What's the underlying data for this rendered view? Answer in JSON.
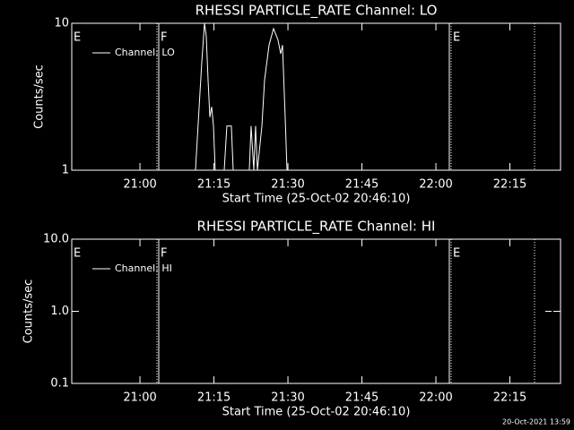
{
  "chart_data": [
    {
      "type": "line",
      "title": "RHESSI PARTICLE_RATE Channel: LO",
      "xlabel": "Start Time (25-Oct-02 20:46:10)",
      "ylabel": "Counts/sec",
      "log_y": true,
      "legend": "upper left",
      "xlim": [
        1246.17,
        1345.27
      ],
      "xticks": [
        {
          "value": 1260,
          "label": "21:00"
        },
        {
          "value": 1275,
          "label": "21:15"
        },
        {
          "value": 1290,
          "label": "21:30"
        },
        {
          "value": 1305,
          "label": "21:45"
        },
        {
          "value": 1320,
          "label": "22:00"
        },
        {
          "value": 1335,
          "label": "22:15"
        }
      ],
      "ylim": [
        1,
        10
      ],
      "yticks": [
        1,
        10
      ],
      "markers": [
        {
          "x": 1246.17,
          "style": "solid",
          "label": "E"
        },
        {
          "x": 1263.44,
          "style": "dotted"
        },
        {
          "x": 1263.81,
          "style": "solid",
          "label": "F"
        },
        {
          "x": 1322.72,
          "style": "solid"
        },
        {
          "x": 1323.08,
          "style": "dotted",
          "label": "E"
        },
        {
          "x": 1340.0,
          "style": "dotted"
        }
      ],
      "x": [
        1271.26,
        1271.99,
        1272.53,
        1273.08,
        1273.44,
        1273.81,
        1274.17,
        1274.53,
        1274.9,
        1275.26,
        1277.08,
        1277.62,
        1278.53,
        1278.9,
        1282.17,
        1282.53,
        1283.08,
        1283.44,
        1283.81,
        1284.72,
        1285.26,
        1286.17,
        1287.08,
        1287.99,
        1288.53,
        1288.9,
        1289.44,
        1289.81
      ],
      "series": [
        {
          "name": "Channel: LO",
          "color": "#ffffff",
          "values": [
            1,
            2.67,
            5.4,
            10,
            8.2,
            4.1,
            2.3,
            2.7,
            2.0,
            1,
            1,
            2,
            2,
            1,
            1,
            2,
            1,
            2,
            1,
            2,
            4.1,
            7.1,
            9.2,
            7.7,
            6.2,
            7.1,
            2.3,
            1
          ]
        }
      ]
    },
    {
      "type": "line",
      "title": "RHESSI PARTICLE_RATE Channel: HI",
      "xlabel": "Start Time (25-Oct-02 20:46:10)",
      "ylabel": "Counts/sec",
      "log_y": true,
      "legend": "upper left",
      "xlim": [
        1246.17,
        1345.27
      ],
      "xticks": [
        {
          "value": 1260,
          "label": "21:00"
        },
        {
          "value": 1275,
          "label": "21:15"
        },
        {
          "value": 1290,
          "label": "21:30"
        },
        {
          "value": 1305,
          "label": "21:45"
        },
        {
          "value": 1320,
          "label": "22:00"
        },
        {
          "value": 1335,
          "label": "22:15"
        }
      ],
      "ylim": [
        0.1,
        10
      ],
      "yticks": [
        0.1,
        {
          "value": 1,
          "label": "1.0"
        },
        {
          "value": 10,
          "label": "10.0"
        }
      ],
      "markers": [
        {
          "x": 1246.17,
          "style": "solid",
          "label": "E"
        },
        {
          "x": 1263.44,
          "style": "dotted"
        },
        {
          "x": 1263.81,
          "style": "solid",
          "label": "F"
        },
        {
          "x": 1322.72,
          "style": "solid"
        },
        {
          "x": 1323.08,
          "style": "dotted",
          "label": "E"
        },
        {
          "x": 1340.0,
          "style": "dotted"
        }
      ],
      "x": [
        1342.17,
        1343.44
      ],
      "series": [
        {
          "name": "Channel: HI",
          "color": "#ffffff",
          "values": [
            1,
            1
          ]
        }
      ]
    }
  ],
  "footer": "20-Oct-2021 13:59"
}
